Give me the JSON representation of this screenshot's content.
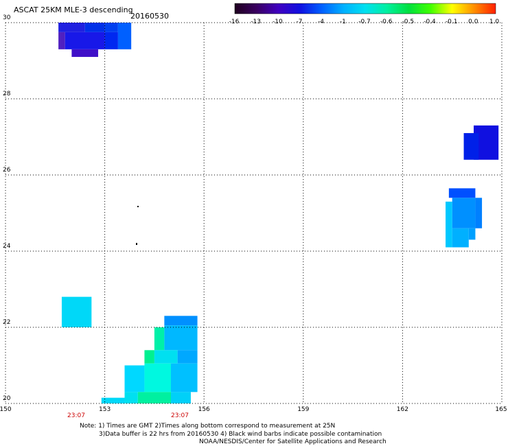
{
  "title": "ASCAT 25KM MLE-3 descending",
  "date": "20160530",
  "colorbar": {
    "labels": [
      "-16",
      "-13",
      "-10",
      "-7",
      "-4",
      "-1",
      "-0.7",
      "-0.6",
      "-0.5",
      "-0.4",
      "-0.1",
      "0.0",
      "1.0"
    ],
    "colors": [
      "#200020",
      "#3a0060",
      "#4000c0",
      "#1010e0",
      "#0060ff",
      "#00b0ff",
      "#00e0f0",
      "#00f0a0",
      "#00e040",
      "#40ff00",
      "#ffff00",
      "#ff9000",
      "#ff2000"
    ]
  },
  "axes": {
    "x_ticks": [
      "150",
      "153",
      "156",
      "159",
      "162",
      "165"
    ],
    "y_ticks": [
      "20",
      "22",
      "24",
      "26",
      "28",
      "30"
    ],
    "x_range": [
      150,
      165
    ],
    "y_range": [
      20,
      30
    ]
  },
  "times": [
    "23:07",
    "23:07"
  ],
  "notes": {
    "line1": "Note: 1) Times are GMT 2)Times along bottom correspond to measurement at 25N",
    "line2": "3)Data buffer is 22 hrs from 20160530 4) Black wind barbs indicate possible contamination",
    "credit": "NOAA/NESDIS/Center for Satellite Applications and Research"
  },
  "data_cells": [
    {
      "lon": [
        151.6,
        152.4
      ],
      "lat": [
        29.75,
        30.0
      ],
      "color": "#2020e0"
    },
    {
      "lon": [
        152.4,
        153.0
      ],
      "lat": [
        29.75,
        30.0
      ],
      "color": "#0030e8"
    },
    {
      "lon": [
        153.0,
        153.4
      ],
      "lat": [
        29.75,
        30.0
      ],
      "color": "#0040f0"
    },
    {
      "lon": [
        153.4,
        153.8
      ],
      "lat": [
        29.3,
        30.0
      ],
      "color": "#0060ff"
    },
    {
      "lon": [
        151.6,
        151.8
      ],
      "lat": [
        29.3,
        29.75
      ],
      "color": "#5020c0"
    },
    {
      "lon": [
        151.8,
        153.0
      ],
      "lat": [
        29.3,
        29.75
      ],
      "color": "#1818e8"
    },
    {
      "lon": [
        153.0,
        153.4
      ],
      "lat": [
        29.3,
        29.75
      ],
      "color": "#0028f0"
    },
    {
      "lon": [
        152.0,
        152.8
      ],
      "lat": [
        29.1,
        29.3
      ],
      "color": "#4010c8"
    },
    {
      "lon": [
        164.15,
        164.9
      ],
      "lat": [
        26.4,
        27.3
      ],
      "color": "#1010e0"
    },
    {
      "lon": [
        163.85,
        164.3
      ],
      "lat": [
        26.4,
        27.1
      ],
      "color": "#0020e8"
    },
    {
      "lon": [
        163.4,
        164.2
      ],
      "lat": [
        25.4,
        25.65
      ],
      "color": "#0050ff"
    },
    {
      "lon": [
        164.2,
        164.4
      ],
      "lat": [
        24.6,
        25.4
      ],
      "color": "#0080ff"
    },
    {
      "lon": [
        163.5,
        164.2
      ],
      "lat": [
        24.6,
        25.4
      ],
      "color": "#0090ff"
    },
    {
      "lon": [
        163.3,
        163.5
      ],
      "lat": [
        24.1,
        25.3
      ],
      "color": "#00c8ff"
    },
    {
      "lon": [
        163.5,
        164.0
      ],
      "lat": [
        24.1,
        24.6
      ],
      "color": "#00b0ff"
    },
    {
      "lon": [
        164.0,
        164.2
      ],
      "lat": [
        24.3,
        24.6
      ],
      "color": "#00a0ff"
    },
    {
      "lon": [
        151.7,
        152.6
      ],
      "lat": [
        22.0,
        22.8
      ],
      "color": "#00d8f8"
    },
    {
      "lon": [
        154.8,
        155.8
      ],
      "lat": [
        22.05,
        22.3
      ],
      "color": "#0090ff"
    },
    {
      "lon": [
        154.5,
        154.8
      ],
      "lat": [
        21.4,
        22.0
      ],
      "color": "#00f0a8"
    },
    {
      "lon": [
        154.8,
        155.8
      ],
      "lat": [
        21.4,
        22.05
      ],
      "color": "#00b8ff"
    },
    {
      "lon": [
        154.2,
        154.5
      ],
      "lat": [
        21.05,
        21.4
      ],
      "color": "#00f090"
    },
    {
      "lon": [
        154.5,
        155.2
      ],
      "lat": [
        21.05,
        21.4
      ],
      "color": "#00e0f0"
    },
    {
      "lon": [
        155.2,
        155.8
      ],
      "lat": [
        21.05,
        21.4
      ],
      "color": "#00a8ff"
    },
    {
      "lon": [
        153.6,
        154.2
      ],
      "lat": [
        20.3,
        21.0
      ],
      "color": "#00d8ff"
    },
    {
      "lon": [
        154.2,
        155.0
      ],
      "lat": [
        20.3,
        21.05
      ],
      "color": "#00f8e0"
    },
    {
      "lon": [
        155.0,
        155.8
      ],
      "lat": [
        20.3,
        21.05
      ],
      "color": "#00c0ff"
    },
    {
      "lon": [
        152.9,
        153.6
      ],
      "lat": [
        20.0,
        20.15
      ],
      "color": "#00d8f8"
    },
    {
      "lon": [
        153.6,
        154.0
      ],
      "lat": [
        20.0,
        20.3
      ],
      "color": "#00e0f0"
    },
    {
      "lon": [
        154.0,
        155.0
      ],
      "lat": [
        20.0,
        20.3
      ],
      "color": "#00f0a0"
    },
    {
      "lon": [
        155.0,
        155.6
      ],
      "lat": [
        20.0,
        20.3
      ],
      "color": "#00d0f8"
    }
  ]
}
